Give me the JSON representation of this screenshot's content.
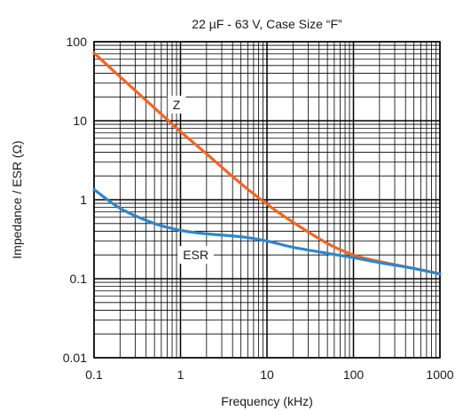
{
  "chart_data": {
    "type": "line",
    "title": "22 µF - 63 V, Case Size “F”",
    "xlabel": "Frequency (kHz)",
    "ylabel": "Impedance / ESR (Ω)",
    "x_scale": "log",
    "y_scale": "log",
    "xlim": [
      0.1,
      1000
    ],
    "ylim": [
      0.01,
      100
    ],
    "x_ticks": [
      {
        "value": 0.1,
        "label": "0.1"
      },
      {
        "value": 1,
        "label": "1"
      },
      {
        "value": 10,
        "label": "10"
      },
      {
        "value": 100,
        "label": "100"
      },
      {
        "value": 1000,
        "label": "1000"
      }
    ],
    "y_ticks": [
      {
        "value": 0.01,
        "label": "0.01"
      },
      {
        "value": 0.1,
        "label": "0.1"
      },
      {
        "value": 1,
        "label": "1"
      },
      {
        "value": 10,
        "label": "10"
      },
      {
        "value": 100,
        "label": "100"
      }
    ],
    "grid": true,
    "series": [
      {
        "name": "Z",
        "color": "#f26522",
        "label_at": {
          "x": 0.9,
          "y": 16
        },
        "points": [
          {
            "x": 0.1,
            "y": 72
          },
          {
            "x": 0.2,
            "y": 36
          },
          {
            "x": 0.5,
            "y": 14.5
          },
          {
            "x": 1,
            "y": 7.3
          },
          {
            "x": 2,
            "y": 3.8
          },
          {
            "x": 5,
            "y": 1.6
          },
          {
            "x": 10,
            "y": 0.88
          },
          {
            "x": 20,
            "y": 0.52
          },
          {
            "x": 50,
            "y": 0.28
          },
          {
            "x": 100,
            "y": 0.2
          },
          {
            "x": 200,
            "y": 0.165
          },
          {
            "x": 500,
            "y": 0.135
          },
          {
            "x": 1000,
            "y": 0.115
          }
        ]
      },
      {
        "name": "ESR",
        "color": "#2e86c9",
        "label_at": {
          "x": 1.5,
          "y": 0.2
        },
        "points": [
          {
            "x": 0.1,
            "y": 1.35
          },
          {
            "x": 0.2,
            "y": 0.78
          },
          {
            "x": 0.5,
            "y": 0.5
          },
          {
            "x": 1,
            "y": 0.41
          },
          {
            "x": 2,
            "y": 0.37
          },
          {
            "x": 5,
            "y": 0.34
          },
          {
            "x": 10,
            "y": 0.3
          },
          {
            "x": 20,
            "y": 0.25
          },
          {
            "x": 50,
            "y": 0.21
          },
          {
            "x": 100,
            "y": 0.185
          },
          {
            "x": 200,
            "y": 0.16
          },
          {
            "x": 500,
            "y": 0.135
          },
          {
            "x": 1000,
            "y": 0.115
          }
        ]
      }
    ]
  }
}
